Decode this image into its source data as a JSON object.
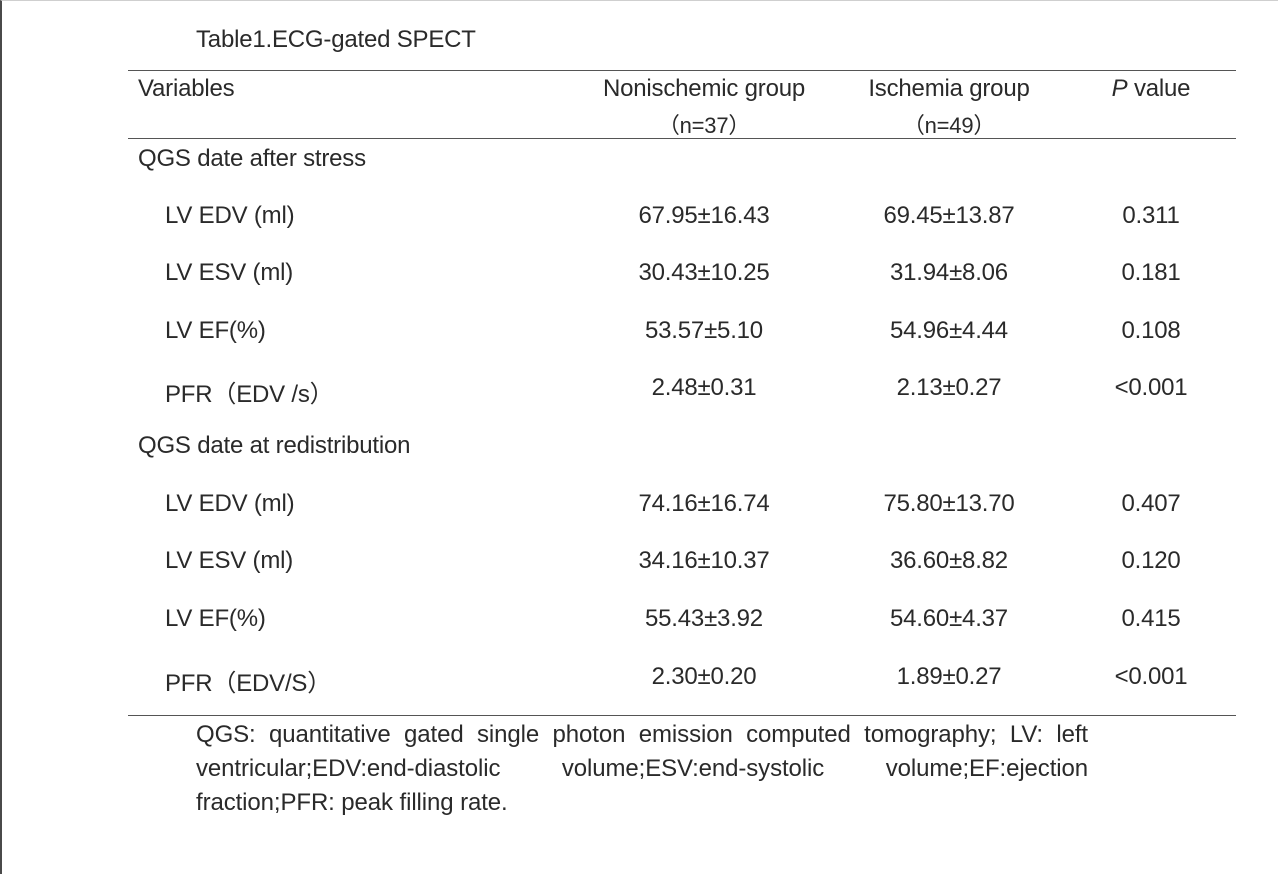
{
  "caption": "Table1.ECG-gated SPECT",
  "header": {
    "variables": "Variables",
    "nonischemic": "Nonischemic group",
    "nonischemic_n": "（n=37）",
    "ischemia": "Ischemia group",
    "ischemia_n": "（n=49）",
    "p_value_italic": "P",
    "p_value_rest": " value"
  },
  "sections": [
    {
      "title": "QGS date after stress",
      "rows": [
        {
          "variable": "LV EDV (ml)",
          "nonischemic": "67.95±16.43",
          "ischemia": "69.45±13.87",
          "p": "0.311"
        },
        {
          "variable": "LV ESV (ml)",
          "nonischemic": "30.43±10.25",
          "ischemia": "31.94±8.06",
          "p": "0.181"
        },
        {
          "variable": "LV EF(%)",
          "nonischemic": "53.57±5.10",
          "ischemia": "54.96±4.44",
          "p": "0.108"
        },
        {
          "variable": "PFR（EDV /s）",
          "nonischemic": "2.48±0.31",
          "ischemia": "2.13±0.27",
          "p": "<0.001"
        }
      ]
    },
    {
      "title": "QGS date at redistribution",
      "rows": [
        {
          "variable": "LV EDV (ml)",
          "nonischemic": "74.16±16.74",
          "ischemia": "75.80±13.70",
          "p": "0.407"
        },
        {
          "variable": "LV ESV (ml)",
          "nonischemic": "34.16±10.37",
          "ischemia": "36.60±8.82",
          "p": "0.120"
        },
        {
          "variable": "LV EF(%)",
          "nonischemic": "55.43±3.92",
          "ischemia": "54.60±4.37",
          "p": "0.415"
        },
        {
          "variable": "PFR（EDV/S）",
          "nonischemic": "2.30±0.20",
          "ischemia": "1.89±0.27",
          "p": "<0.001"
        }
      ]
    }
  ],
  "footnote": "QGS: quantitative gated single photon emission computed tomography; LV: left ventricular;EDV:end-diastolic volume;ESV:end-systolic volume;EF:ejection fraction;PFR: peak filling rate."
}
